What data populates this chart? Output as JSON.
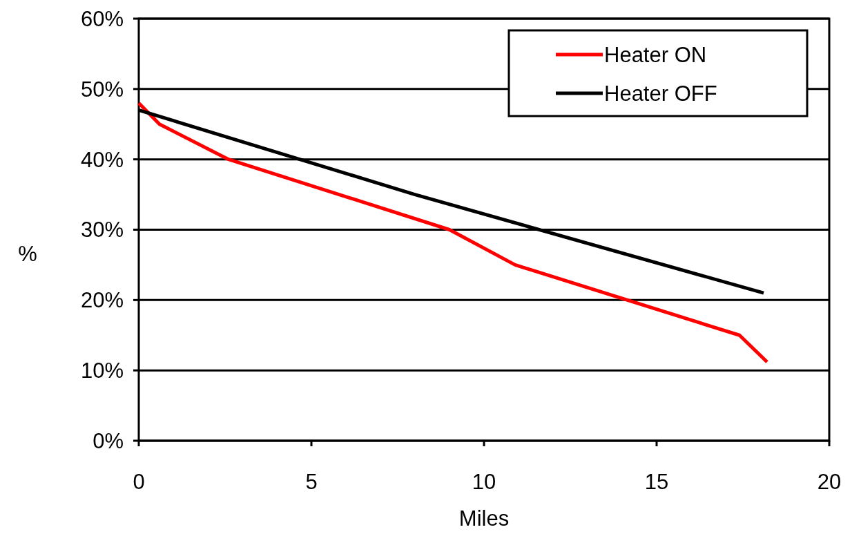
{
  "chart_data": {
    "type": "line",
    "xlabel": "Miles",
    "ylabel": "%",
    "xlim": [
      0,
      20
    ],
    "xticks": [
      0,
      5,
      10,
      15,
      20
    ],
    "ylim": [
      0,
      60
    ],
    "yticks": [
      {
        "value": 0,
        "label": "0%"
      },
      {
        "value": 10,
        "label": "10%"
      },
      {
        "value": 20,
        "label": "20%"
      },
      {
        "value": 30,
        "label": "30%"
      },
      {
        "value": 40,
        "label": "40%"
      },
      {
        "value": 50,
        "label": "50%"
      },
      {
        "value": 60,
        "label": "60%"
      }
    ],
    "grid": "y",
    "legend": "top right",
    "marker": "none",
    "line_style": "solid",
    "series": [
      {
        "name": "Heater ON",
        "color": "#ff0000",
        "x": [
          0,
          0.6,
          2.6,
          9,
          10.9,
          17.4,
          18.2
        ],
        "values": [
          48,
          45,
          40,
          30,
          25,
          15,
          11.2
        ]
      },
      {
        "name": "Heater OFF",
        "color": "#000000",
        "x": [
          0,
          8,
          18.1
        ],
        "values": [
          47,
          35,
          21
        ]
      }
    ]
  }
}
